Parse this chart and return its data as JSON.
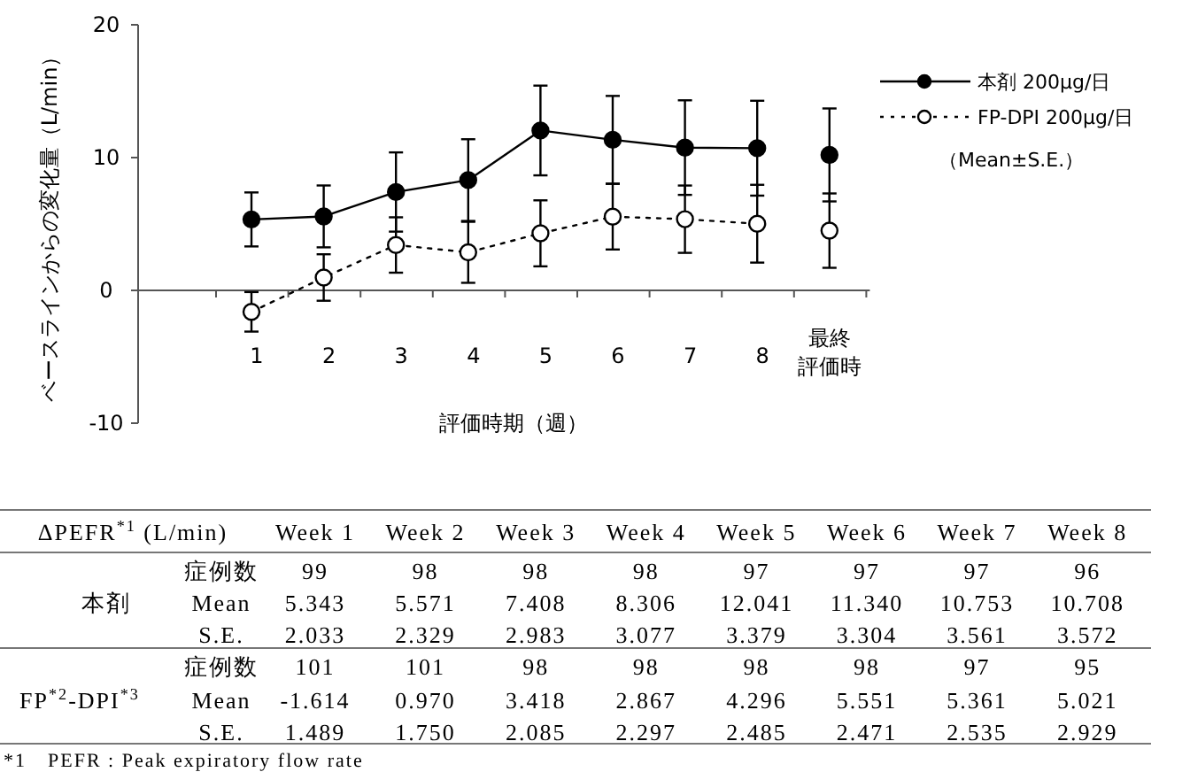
{
  "chart_data": {
    "type": "line",
    "xlabel": "評価時期（週）",
    "ylabel": "ベースラインからの変化量（L/min）",
    "categories": [
      "1",
      "2",
      "3",
      "4",
      "5",
      "6",
      "7",
      "8",
      "最終評価時"
    ],
    "ylim": [
      -10,
      20
    ],
    "yticks": [
      -10,
      0,
      10,
      20
    ],
    "legend": "top right",
    "marker": "circle",
    "series": [
      {
        "name": "本剤 200μg/日",
        "color": "#000000",
        "line_style": "solid",
        "values": [
          5.343,
          5.571,
          7.408,
          8.306,
          12.041,
          11.34,
          10.753,
          10.708,
          null
        ],
        "errors": [
          2.033,
          2.329,
          2.983,
          3.077,
          3.379,
          3.304,
          3.561,
          3.572,
          null
        ]
      },
      {
        "name": "FP-DPI 200μg/日",
        "color": "#000000",
        "line_style": "dotted",
        "values": [
          -1.614,
          0.97,
          3.418,
          2.867,
          4.296,
          5.551,
          5.361,
          5.021,
          null
        ],
        "errors": [
          1.489,
          1.75,
          2.085,
          2.297,
          2.485,
          2.471,
          2.535,
          2.929,
          null
        ]
      },
      {
        "type": "scatter",
        "color": "#000000",
        "x": [
          "最終評価時"
        ],
        "values": [
          10.2
        ],
        "errors": [
          3.5
        ]
      },
      {
        "type": "scatter",
        "color": "#000000",
        "x": [
          "最終評価時"
        ],
        "values": [
          4.5
        ],
        "errors": [
          2.8
        ]
      }
    ],
    "annotations": [
      "（Mean±S.E.）",
      "ΔPEFR$^{*1}$ (L/min)",
      "症例数",
      "Mean",
      "S.E.",
      "*1　PEFR : Peak expiratory flow rate",
      "本剤",
      "FP$^{*2}$-DPI$^{*3}$",
      "Week 1",
      "Week 2",
      "Week 3",
      "Week 4",
      "Week 5",
      "Week 6",
      "Week 7",
      "Week 8",
      "99",
      "98",
      "98",
      "98",
      "97",
      "97",
      "97",
      "96",
      "5.343",
      "5.571",
      "7.408",
      "8.306",
      "12.041",
      "11.340",
      "10.753",
      "10.708",
      "2.033",
      "2.329",
      "2.983",
      "3.077",
      "3.379",
      "3.304",
      "3.561",
      "3.572",
      "101",
      "101",
      "98",
      "98",
      "98",
      "98",
      "97",
      "95",
      "-1.614",
      "0.970",
      "3.418",
      "2.867",
      "4.296",
      "5.551",
      "5.361",
      "5.021",
      "1.489",
      "1.750",
      "2.085",
      "2.297",
      "2.485",
      "2.471",
      "2.535",
      "2.929"
    ]
  }
}
